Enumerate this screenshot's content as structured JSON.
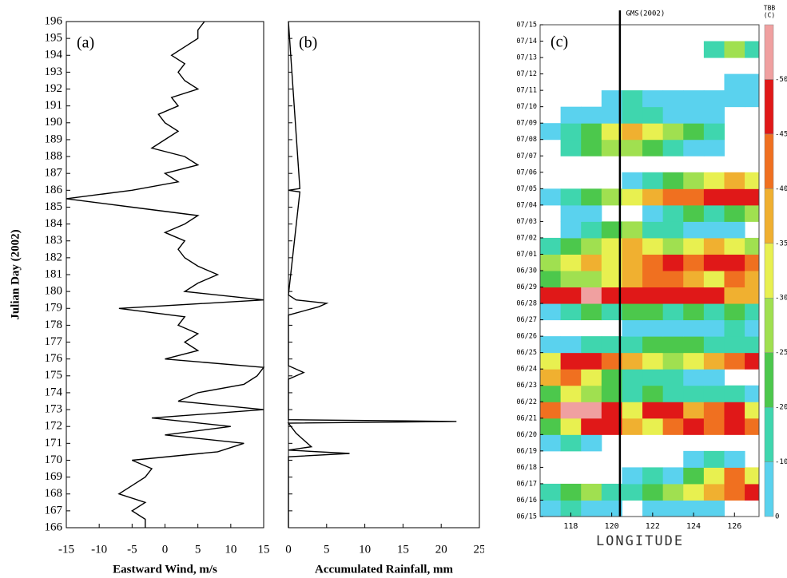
{
  "chart_data": [
    {
      "type": "line",
      "panel_label": "(a)",
      "xlabel": "Eastward Wind, m/s",
      "ylabel": "Julian Day (2002)",
      "color": "#000000",
      "days": [
        166,
        166.5,
        167,
        167.5,
        168,
        168.5,
        169,
        169.5,
        170,
        170.5,
        171,
        171.5,
        172,
        172.5,
        173,
        173.5,
        174,
        174.5,
        175,
        175.5,
        176,
        176.5,
        177,
        177.5,
        178,
        178.5,
        179,
        179.5,
        180,
        180.5,
        181,
        181.5,
        182,
        182.5,
        183,
        183.5,
        184,
        184.5,
        185,
        185.5,
        186,
        186.5,
        187,
        187.5,
        188,
        188.5,
        189,
        189.5,
        190,
        190.5,
        191,
        191.5,
        192,
        192.5,
        193,
        193.5,
        194,
        194.5,
        195,
        195.5,
        196
      ],
      "values": [
        -3,
        -3,
        -5,
        -3,
        -7,
        -5,
        -3,
        -2,
        -5,
        8,
        12,
        0,
        10,
        -2,
        15,
        2,
        5,
        12,
        14,
        15,
        0,
        5,
        3,
        5,
        2,
        3,
        -7,
        15,
        3,
        5,
        8,
        5,
        3,
        2,
        3,
        0,
        3,
        5,
        -5,
        -15,
        -5,
        2,
        0,
        5,
        3,
        -2,
        0,
        2,
        0,
        -1,
        2,
        1,
        5,
        3,
        2,
        3,
        1,
        3,
        5,
        5,
        6
      ],
      "xlim": [
        -15,
        15
      ],
      "xticks": [
        -15,
        -10,
        -5,
        0,
        5,
        10,
        15
      ],
      "ylim": [
        166,
        196
      ],
      "yticks": [
        166,
        167,
        168,
        169,
        170,
        171,
        172,
        173,
        174,
        175,
        176,
        177,
        178,
        179,
        180,
        181,
        182,
        183,
        184,
        185,
        186,
        187,
        188,
        189,
        190,
        191,
        192,
        193,
        194,
        195,
        196
      ]
    },
    {
      "type": "line",
      "panel_label": "(b)",
      "xlabel": "Accumulated Rainfall, mm",
      "color": "#000000",
      "days": [
        166,
        170.2,
        170.4,
        170.6,
        170.8,
        171.2,
        171.6,
        172.2,
        172.3,
        172.4,
        173,
        174.8,
        175.2,
        175.6,
        178.6,
        179.1,
        179.3,
        179.5,
        179.8,
        185.9,
        186.0,
        186.1,
        196
      ],
      "values": [
        0,
        0,
        8,
        0,
        3,
        2,
        1,
        0,
        22,
        0,
        0,
        0,
        2,
        0,
        0,
        4,
        5,
        1,
        0,
        1.5,
        0,
        1.5,
        0
      ],
      "xlim": [
        0,
        25
      ],
      "xticks": [
        0,
        5,
        10,
        15,
        20,
        25
      ],
      "ylim": [
        166,
        196
      ],
      "yticks": [
        166,
        167,
        168,
        169,
        170,
        171,
        172,
        173,
        174,
        175,
        176,
        177,
        178,
        179,
        180,
        181,
        182,
        183,
        184,
        185,
        186,
        187,
        188,
        189,
        190,
        191,
        192,
        193,
        194,
        195,
        196
      ]
    },
    {
      "type": "heatmap",
      "panel_label": "(c)",
      "title": "GMS(2002)",
      "xlabel": "LONGITUDE",
      "colorbar_title": "TBB",
      "colorbar_unit": "(C)",
      "xlim": [
        116.5,
        127.2
      ],
      "xticks": [
        118,
        120,
        122,
        124,
        126
      ],
      "marker_lon": 120.4,
      "lons": [
        117,
        118,
        119,
        120,
        121,
        122,
        123,
        124,
        125,
        126,
        127
      ],
      "ylim": [
        0,
        30
      ],
      "yticks": [
        {
          "value": 0,
          "label": "06/15"
        },
        {
          "value": 1,
          "label": "06/16"
        },
        {
          "value": 2,
          "label": "06/17"
        },
        {
          "value": 3,
          "label": "06/18"
        },
        {
          "value": 4,
          "label": "06/19"
        },
        {
          "value": 5,
          "label": "06/20"
        },
        {
          "value": 6,
          "label": "06/21"
        },
        {
          "value": 7,
          "label": "06/22"
        },
        {
          "value": 8,
          "label": "06/23"
        },
        {
          "value": 9,
          "label": "06/24"
        },
        {
          "value": 10,
          "label": "06/25"
        },
        {
          "value": 11,
          "label": "06/26"
        },
        {
          "value": 12,
          "label": "06/27"
        },
        {
          "value": 13,
          "label": "06/28"
        },
        {
          "value": 14,
          "label": "06/29"
        },
        {
          "value": 15,
          "label": "06/30"
        },
        {
          "value": 16,
          "label": "07/01"
        },
        {
          "value": 17,
          "label": "07/02"
        },
        {
          "value": 18,
          "label": "07/03"
        },
        {
          "value": 19,
          "label": "07/04"
        },
        {
          "value": 20,
          "label": "07/05"
        },
        {
          "value": 21,
          "label": "07/06"
        },
        {
          "value": 22,
          "label": "07/07"
        },
        {
          "value": 23,
          "label": "07/08"
        },
        {
          "value": 24,
          "label": "07/09"
        },
        {
          "value": 25,
          "label": "07/10"
        },
        {
          "value": 26,
          "label": "07/11"
        },
        {
          "value": 27,
          "label": "07/12"
        },
        {
          "value": 28,
          "label": "07/13"
        },
        {
          "value": 29,
          "label": "07/14"
        },
        {
          "value": 30,
          "label": "07/15"
        }
      ],
      "z": [
        [
          -8,
          -15,
          -8,
          -5,
          null,
          -8,
          -8,
          -8,
          -8,
          null,
          null
        ],
        [
          -15,
          -20,
          -25,
          -15,
          -15,
          -20,
          -25,
          -30,
          -35,
          -40,
          -45
        ],
        [
          null,
          null,
          null,
          null,
          -8,
          -15,
          -8,
          -20,
          -30,
          -42,
          -30
        ],
        [
          null,
          null,
          null,
          null,
          null,
          null,
          null,
          -8,
          -15,
          -8,
          null
        ],
        [
          -8,
          -12,
          -8,
          null,
          null,
          null,
          null,
          null,
          null,
          null,
          null
        ],
        [
          -20,
          -30,
          -45,
          -48,
          -35,
          -30,
          -42,
          -45,
          -40,
          -45,
          -40
        ],
        [
          -40,
          -52,
          -52,
          -45,
          -30,
          -48,
          -45,
          -35,
          -40,
          -45,
          -30
        ],
        [
          -20,
          -30,
          -25,
          -20,
          -15,
          -20,
          -15,
          -12,
          -15,
          -12,
          -8
        ],
        [
          -35,
          -42,
          -30,
          -20,
          -15,
          -12,
          -15,
          -8,
          -8,
          null,
          null
        ],
        [
          -30,
          -45,
          -48,
          -40,
          -35,
          -30,
          -25,
          -30,
          -35,
          -40,
          -45
        ],
        [
          -8,
          -8,
          -12,
          -15,
          -15,
          -20,
          -20,
          -20,
          -15,
          -15,
          -15
        ],
        [
          null,
          null,
          null,
          null,
          -8,
          -8,
          -8,
          -8,
          -8,
          -15,
          -8
        ],
        [
          -8,
          -15,
          -20,
          -15,
          -20,
          -20,
          -15,
          -20,
          -15,
          -20,
          -15
        ],
        [
          -45,
          -48,
          -52,
          -45,
          -45,
          -48,
          -45,
          -48,
          -45,
          -35,
          -35
        ],
        [
          -20,
          -25,
          -25,
          -30,
          -35,
          -42,
          -40,
          -35,
          -30,
          -40,
          -35
        ],
        [
          -25,
          -30,
          -35,
          -30,
          -35,
          -40,
          -45,
          -40,
          -45,
          -45,
          -42
        ],
        [
          -15,
          -20,
          -25,
          -30,
          -35,
          -30,
          -25,
          -30,
          -35,
          -30,
          -25
        ],
        [
          null,
          -8,
          -15,
          -20,
          -25,
          -15,
          -12,
          -8,
          -8,
          -8,
          null
        ],
        [
          null,
          -8,
          -8,
          null,
          null,
          -8,
          -15,
          -20,
          -15,
          -20,
          -25
        ],
        [
          -8,
          -15,
          -20,
          -25,
          -30,
          -35,
          -40,
          -42,
          -45,
          -48,
          -45
        ],
        [
          null,
          null,
          null,
          null,
          -8,
          -15,
          -20,
          -25,
          -30,
          -35,
          -30
        ],
        [
          null,
          null,
          null,
          null,
          null,
          null,
          null,
          null,
          null,
          null,
          null
        ],
        [
          null,
          -15,
          -20,
          -25,
          -25,
          -20,
          -15,
          -8,
          -8,
          null,
          null
        ],
        [
          -8,
          -15,
          -20,
          -30,
          -35,
          -30,
          -25,
          -20,
          -15,
          null,
          null
        ],
        [
          null,
          -8,
          -8,
          -8,
          -15,
          -15,
          -8,
          -8,
          -8,
          null,
          null
        ],
        [
          null,
          null,
          null,
          -8,
          -15,
          -8,
          -8,
          -8,
          -8,
          -8,
          -8
        ],
        [
          null,
          null,
          null,
          null,
          null,
          null,
          null,
          null,
          null,
          -8,
          -8
        ],
        [
          null,
          null,
          null,
          null,
          null,
          null,
          null,
          null,
          null,
          null,
          null
        ],
        [
          null,
          null,
          null,
          null,
          null,
          null,
          null,
          null,
          -15,
          -25,
          -15
        ],
        [
          null,
          null,
          null,
          null,
          null,
          null,
          null,
          null,
          null,
          null,
          null
        ]
      ],
      "levels": [
        0,
        -10,
        -20,
        -25,
        -30,
        -35,
        -40,
        -45,
        -50,
        -55
      ],
      "level_colors": [
        "#5ad2ee",
        "#3fd6ae",
        "#4cc84c",
        "#a0e050",
        "#e8f050",
        "#f0b030",
        "#f07020",
        "#e01818",
        "#f0a0a0"
      ],
      "colorbar_ticks": [
        0,
        -10,
        -20,
        -25,
        -30,
        -35,
        -40,
        -45,
        -50
      ]
    }
  ]
}
